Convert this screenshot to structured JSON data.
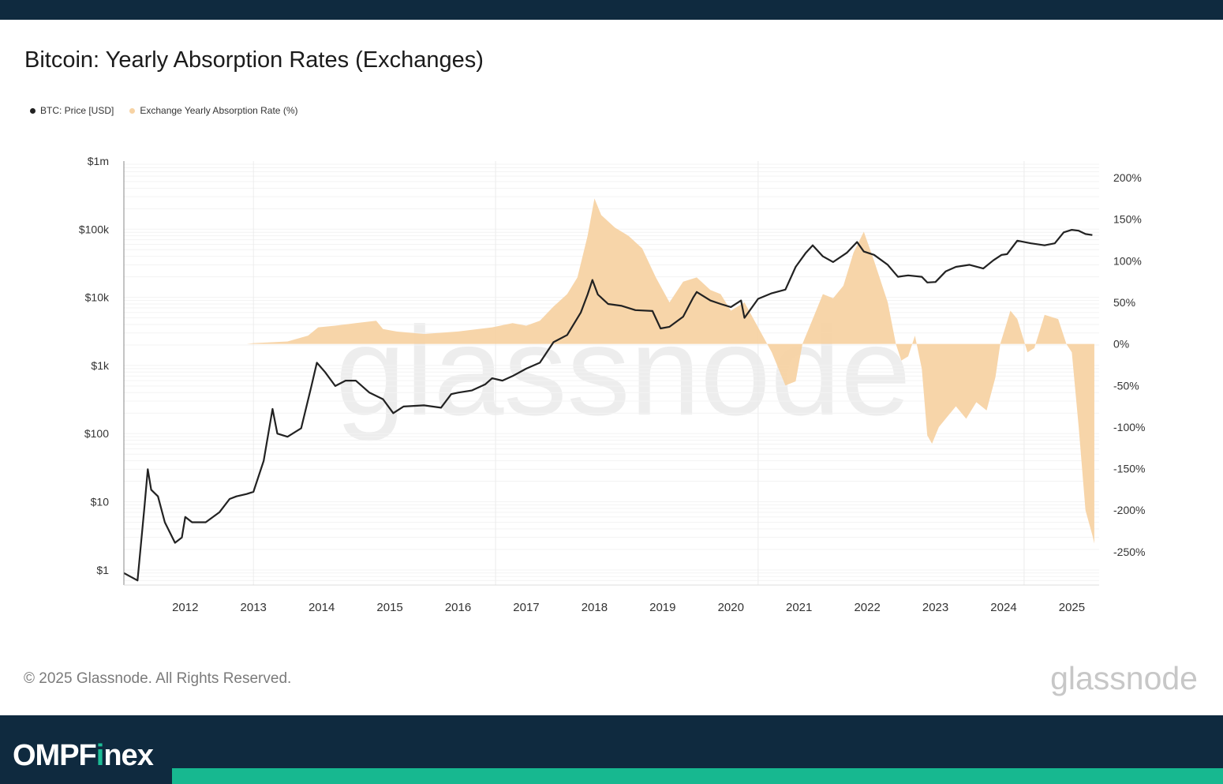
{
  "title": "Bitcoin: Yearly Absorption Rates (Exchanges)",
  "legend": [
    {
      "label": "BTC: Price [USD]",
      "color": "#222222"
    },
    {
      "label": "Exchange Yearly Absorption Rate (%)",
      "color": "#f7d3a4"
    }
  ],
  "watermark": "glassnode",
  "copyright": "© 2025 Glassnode. All Rights Reserved.",
  "brand_logo": "glassnode",
  "footer_logo": {
    "part1": "OMPF",
    "accent": "i",
    "part2": "nex"
  },
  "colors": {
    "price": "#222222",
    "absorption": "#f7d3a4",
    "footer_bg": "#0f2a3f",
    "footer_accent": "#17b890"
  },
  "chart_data": {
    "type": "line",
    "title": "Bitcoin: Yearly Absorption Rates (Exchanges)",
    "x_ticks": [
      "2012",
      "2013",
      "2014",
      "2015",
      "2016",
      "2017",
      "2018",
      "2019",
      "2020",
      "2021",
      "2022",
      "2023",
      "2024",
      "2025"
    ],
    "xlim": [
      2011.1,
      2025.4
    ],
    "y_left": {
      "scale": "log",
      "ticks": [
        "$1",
        "$10",
        "$100",
        "$1k",
        "$10k",
        "$100k",
        "$1m"
      ],
      "range": [
        0.6,
        1000000
      ]
    },
    "y_right": {
      "ticks": [
        "200%",
        "150%",
        "100%",
        "50%",
        "0%",
        "-50%",
        "-100%",
        "-150%",
        "-200%",
        "-250%"
      ],
      "range": [
        -290,
        220
      ]
    },
    "series": [
      {
        "name": "BTC: Price [USD]",
        "axis": "left",
        "points": [
          [
            2011.1,
            0.9
          ],
          [
            2011.3,
            0.7
          ],
          [
            2011.4,
            8
          ],
          [
            2011.45,
            30
          ],
          [
            2011.5,
            15
          ],
          [
            2011.6,
            12
          ],
          [
            2011.7,
            5
          ],
          [
            2011.85,
            2.5
          ],
          [
            2011.95,
            3
          ],
          [
            2012.0,
            6
          ],
          [
            2012.1,
            5
          ],
          [
            2012.3,
            5
          ],
          [
            2012.5,
            7
          ],
          [
            2012.65,
            11
          ],
          [
            2012.75,
            12
          ],
          [
            2012.9,
            13
          ],
          [
            2013.0,
            14
          ],
          [
            2013.15,
            40
          ],
          [
            2013.28,
            230
          ],
          [
            2013.35,
            100
          ],
          [
            2013.5,
            90
          ],
          [
            2013.7,
            120
          ],
          [
            2013.85,
            500
          ],
          [
            2013.93,
            1100
          ],
          [
            2014.05,
            800
          ],
          [
            2014.2,
            500
          ],
          [
            2014.35,
            600
          ],
          [
            2014.5,
            600
          ],
          [
            2014.7,
            400
          ],
          [
            2014.9,
            320
          ],
          [
            2015.05,
            200
          ],
          [
            2015.2,
            250
          ],
          [
            2015.5,
            260
          ],
          [
            2015.75,
            240
          ],
          [
            2015.9,
            380
          ],
          [
            2016.0,
            400
          ],
          [
            2016.2,
            430
          ],
          [
            2016.4,
            530
          ],
          [
            2016.5,
            650
          ],
          [
            2016.65,
            600
          ],
          [
            2016.8,
            700
          ],
          [
            2017.0,
            900
          ],
          [
            2017.2,
            1100
          ],
          [
            2017.4,
            2200
          ],
          [
            2017.6,
            2800
          ],
          [
            2017.8,
            6000
          ],
          [
            2017.9,
            11000
          ],
          [
            2017.97,
            18000
          ],
          [
            2018.05,
            11000
          ],
          [
            2018.2,
            8000
          ],
          [
            2018.4,
            7500
          ],
          [
            2018.6,
            6500
          ],
          [
            2018.85,
            6300
          ],
          [
            2018.97,
            3500
          ],
          [
            2019.1,
            3700
          ],
          [
            2019.3,
            5200
          ],
          [
            2019.45,
            10000
          ],
          [
            2019.5,
            12000
          ],
          [
            2019.7,
            9000
          ],
          [
            2019.85,
            8000
          ],
          [
            2020.0,
            7200
          ],
          [
            2020.15,
            9000
          ],
          [
            2020.2,
            5000
          ],
          [
            2020.4,
            9500
          ],
          [
            2020.6,
            11500
          ],
          [
            2020.8,
            13000
          ],
          [
            2020.95,
            28000
          ],
          [
            2021.1,
            45000
          ],
          [
            2021.2,
            58000
          ],
          [
            2021.35,
            40000
          ],
          [
            2021.5,
            33000
          ],
          [
            2021.7,
            45000
          ],
          [
            2021.85,
            65000
          ],
          [
            2021.95,
            47000
          ],
          [
            2022.1,
            42000
          ],
          [
            2022.3,
            30000
          ],
          [
            2022.45,
            20000
          ],
          [
            2022.6,
            21000
          ],
          [
            2022.8,
            20000
          ],
          [
            2022.88,
            16500
          ],
          [
            2023.0,
            16800
          ],
          [
            2023.15,
            24000
          ],
          [
            2023.3,
            28000
          ],
          [
            2023.5,
            30000
          ],
          [
            2023.7,
            26500
          ],
          [
            2023.85,
            35000
          ],
          [
            2023.97,
            42000
          ],
          [
            2024.05,
            43000
          ],
          [
            2024.2,
            68000
          ],
          [
            2024.4,
            62000
          ],
          [
            2024.6,
            58000
          ],
          [
            2024.75,
            62000
          ],
          [
            2024.88,
            90000
          ],
          [
            2025.0,
            98000
          ],
          [
            2025.1,
            95000
          ],
          [
            2025.2,
            85000
          ],
          [
            2025.3,
            82000
          ]
        ]
      },
      {
        "name": "Exchange Yearly Absorption Rate (%)",
        "axis": "right",
        "points": [
          [
            2011.1,
            0
          ],
          [
            2012.9,
            0
          ],
          [
            2013.0,
            1
          ],
          [
            2013.5,
            3
          ],
          [
            2013.8,
            10
          ],
          [
            2013.95,
            20
          ],
          [
            2014.2,
            22
          ],
          [
            2014.5,
            25
          ],
          [
            2014.8,
            28
          ],
          [
            2014.9,
            18
          ],
          [
            2015.1,
            15
          ],
          [
            2015.5,
            12
          ],
          [
            2016.0,
            15
          ],
          [
            2016.5,
            20
          ],
          [
            2016.8,
            25
          ],
          [
            2017.0,
            22
          ],
          [
            2017.2,
            28
          ],
          [
            2017.4,
            45
          ],
          [
            2017.6,
            60
          ],
          [
            2017.75,
            80
          ],
          [
            2017.9,
            130
          ],
          [
            2018.0,
            175
          ],
          [
            2018.1,
            155
          ],
          [
            2018.3,
            140
          ],
          [
            2018.5,
            130
          ],
          [
            2018.7,
            115
          ],
          [
            2018.9,
            80
          ],
          [
            2019.1,
            50
          ],
          [
            2019.3,
            75
          ],
          [
            2019.5,
            80
          ],
          [
            2019.7,
            65
          ],
          [
            2019.85,
            60
          ],
          [
            2020.0,
            40
          ],
          [
            2020.2,
            50
          ],
          [
            2020.4,
            20
          ],
          [
            2020.6,
            -10
          ],
          [
            2020.8,
            -50
          ],
          [
            2020.95,
            -45
          ],
          [
            2021.05,
            0
          ],
          [
            2021.2,
            30
          ],
          [
            2021.35,
            60
          ],
          [
            2021.5,
            55
          ],
          [
            2021.65,
            70
          ],
          [
            2021.8,
            110
          ],
          [
            2021.95,
            135
          ],
          [
            2022.1,
            100
          ],
          [
            2022.3,
            50
          ],
          [
            2022.42,
            0
          ],
          [
            2022.5,
            -20
          ],
          [
            2022.6,
            -15
          ],
          [
            2022.7,
            10
          ],
          [
            2022.8,
            -30
          ],
          [
            2022.88,
            -110
          ],
          [
            2022.95,
            -120
          ],
          [
            2023.05,
            -100
          ],
          [
            2023.2,
            -85
          ],
          [
            2023.3,
            -75
          ],
          [
            2023.45,
            -90
          ],
          [
            2023.6,
            -70
          ],
          [
            2023.75,
            -80
          ],
          [
            2023.88,
            -40
          ],
          [
            2023.95,
            0
          ],
          [
            2024.1,
            40
          ],
          [
            2024.2,
            30
          ],
          [
            2024.35,
            -10
          ],
          [
            2024.45,
            -5
          ],
          [
            2024.6,
            35
          ],
          [
            2024.8,
            30
          ],
          [
            2024.92,
            0
          ],
          [
            2025.0,
            -10
          ],
          [
            2025.1,
            -100
          ],
          [
            2025.2,
            -200
          ],
          [
            2025.3,
            -230
          ],
          [
            2025.33,
            -240
          ]
        ]
      }
    ]
  }
}
